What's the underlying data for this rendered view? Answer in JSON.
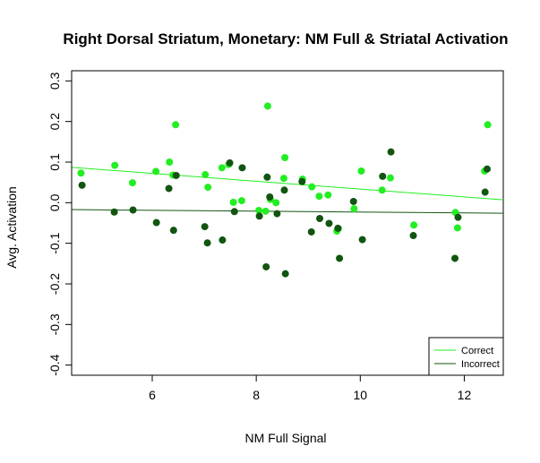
{
  "chart_data": {
    "type": "scatter",
    "title": "Right Dorsal Striatum, Monetary: NM Full & Striatal Activation",
    "xlabel": "NM Full Signal",
    "ylabel": "Avg. Activation",
    "xlim": [
      4.45,
      12.75
    ],
    "ylim": [
      -0.425,
      0.325
    ],
    "x_ticks": [
      6,
      8,
      10,
      12
    ],
    "y_ticks": [
      -0.4,
      -0.3,
      -0.2,
      -0.1,
      0.0,
      0.1,
      0.2,
      0.3
    ],
    "x_tick_labels": [
      "6",
      "8",
      "10",
      "12"
    ],
    "y_tick_labels": [
      "-0.4",
      "-0.3",
      "-0.2",
      "-0.1",
      "0.0",
      "0.1",
      "0.2",
      "0.3"
    ],
    "grid": false,
    "legend": {
      "position": "bottom-right",
      "entries": [
        "Correct",
        "Incorrect"
      ]
    },
    "series": [
      {
        "name": "Correct",
        "color": "#22ee22",
        "x": [
          4.63,
          5.28,
          5.62,
          6.07,
          6.33,
          6.4,
          6.45,
          7.02,
          7.07,
          7.34,
          7.47,
          7.56,
          7.72,
          8.05,
          8.18,
          8.22,
          8.27,
          8.38,
          8.53,
          8.55,
          8.89,
          9.07,
          9.21,
          9.38,
          9.55,
          9.58,
          9.88,
          10.02,
          10.42,
          10.58,
          11.03,
          11.83,
          11.87,
          12.39,
          12.45
        ],
        "y": [
          0.073,
          0.092,
          0.049,
          0.077,
          0.1,
          0.068,
          0.192,
          0.069,
          0.038,
          0.086,
          0.094,
          0.001,
          0.005,
          -0.019,
          -0.021,
          0.238,
          0.008,
          0.0,
          0.06,
          0.111,
          0.058,
          0.039,
          0.016,
          0.019,
          -0.07,
          -0.064,
          -0.015,
          0.078,
          0.031,
          0.061,
          -0.055,
          -0.024,
          -0.062,
          0.078,
          0.192
        ]
      },
      {
        "name": "Incorrect",
        "color": "#115511",
        "x": [
          4.65,
          5.27,
          5.63,
          6.08,
          6.32,
          6.41,
          6.46,
          7.01,
          7.06,
          7.35,
          7.49,
          7.58,
          7.73,
          8.06,
          8.19,
          8.21,
          8.26,
          8.4,
          8.54,
          8.56,
          8.88,
          9.06,
          9.22,
          9.4,
          9.57,
          9.6,
          9.87,
          10.04,
          10.43,
          10.59,
          11.02,
          11.82,
          11.88,
          12.4,
          12.44
        ],
        "y": [
          0.043,
          -0.023,
          -0.018,
          -0.049,
          0.035,
          -0.068,
          0.067,
          -0.059,
          -0.099,
          -0.092,
          0.098,
          -0.022,
          0.086,
          -0.033,
          -0.158,
          0.063,
          0.014,
          -0.027,
          0.031,
          -0.175,
          0.052,
          -0.072,
          -0.039,
          -0.051,
          -0.063,
          -0.137,
          0.003,
          -0.091,
          0.065,
          0.125,
          -0.081,
          -0.137,
          -0.036,
          0.026,
          0.083
        ]
      }
    ],
    "fit_lines": [
      {
        "name": "Correct",
        "color": "#22ee22",
        "x": [
          4.45,
          12.75
        ],
        "y": [
          0.087,
          0.007
        ]
      },
      {
        "name": "Incorrect",
        "color": "#115511",
        "x": [
          4.45,
          12.75
        ],
        "y": [
          -0.017,
          -0.026
        ]
      }
    ]
  }
}
